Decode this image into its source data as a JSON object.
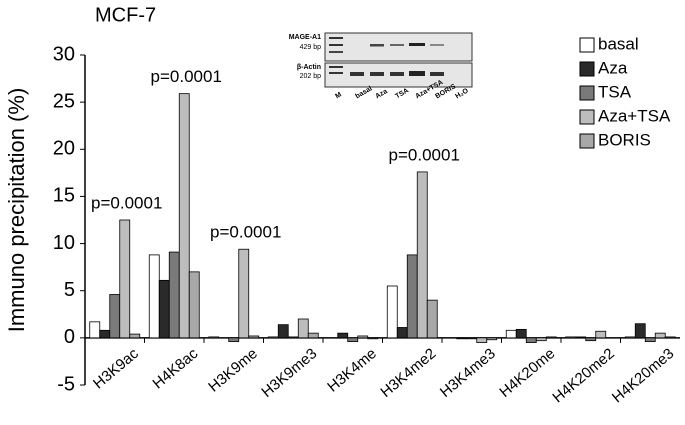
{
  "chart_data": {
    "type": "bar",
    "title": "MCF-7",
    "y_label": "Immuno precipitation  (%)",
    "categories": [
      "H3K9ac",
      "H4K8ac",
      "H3K9me",
      "H3K9me3",
      "H3K4me",
      "H3K4me2",
      "H3K4me3",
      "H4K20me",
      "H4K20me2",
      "H4K20me3"
    ],
    "series": [
      {
        "name": "basal",
        "color": "#ffffff",
        "values": [
          1.7,
          8.8,
          0.1,
          0.1,
          0.0,
          5.5,
          0.0,
          0.8,
          0.1,
          0.1
        ]
      },
      {
        "name": "Aza",
        "color": "#2a2a2a",
        "values": [
          0.8,
          6.1,
          0.0,
          1.4,
          0.5,
          1.1,
          -0.1,
          0.9,
          0.1,
          1.5
        ]
      },
      {
        "name": "TSA",
        "color": "#7a7a7a",
        "values": [
          4.6,
          9.1,
          -0.4,
          0.1,
          -0.4,
          8.8,
          -0.1,
          -0.5,
          -0.3,
          -0.4
        ]
      },
      {
        "name": "Aza+TSA",
        "color": "#bdbdbd",
        "values": [
          12.5,
          25.9,
          9.4,
          2.0,
          0.2,
          17.6,
          -0.5,
          -0.3,
          0.7,
          0.5
        ]
      },
      {
        "name": "BORIS",
        "color": "#a8a8a8",
        "values": [
          0.4,
          7.0,
          0.2,
          0.5,
          -0.1,
          4.0,
          -0.2,
          0.1,
          0.0,
          0.1
        ]
      }
    ],
    "ylim": [
      -5,
      30
    ],
    "yticks": [
      -5,
      0,
      5,
      10,
      15,
      20,
      25,
      30
    ],
    "grid": false,
    "legend": "top-right",
    "annotations": [
      {
        "label": "p=0.0001",
        "category": "H3K9ac"
      },
      {
        "label": "p=0.0001",
        "category": "H4K8ac"
      },
      {
        "label": "p=0.0001",
        "category": "H3K9me"
      },
      {
        "label": "p=0.0001",
        "category": "H3K4me2"
      }
    ]
  },
  "inset": {
    "gene1": "MAGE-A1",
    "size1": "429 bp",
    "gene2": "β-Actin",
    "size2": "202 bp",
    "lanes": [
      "M",
      "basal",
      "Aza",
      "TSA",
      "Aza+TSA",
      "BORIS",
      "H₂O"
    ]
  }
}
